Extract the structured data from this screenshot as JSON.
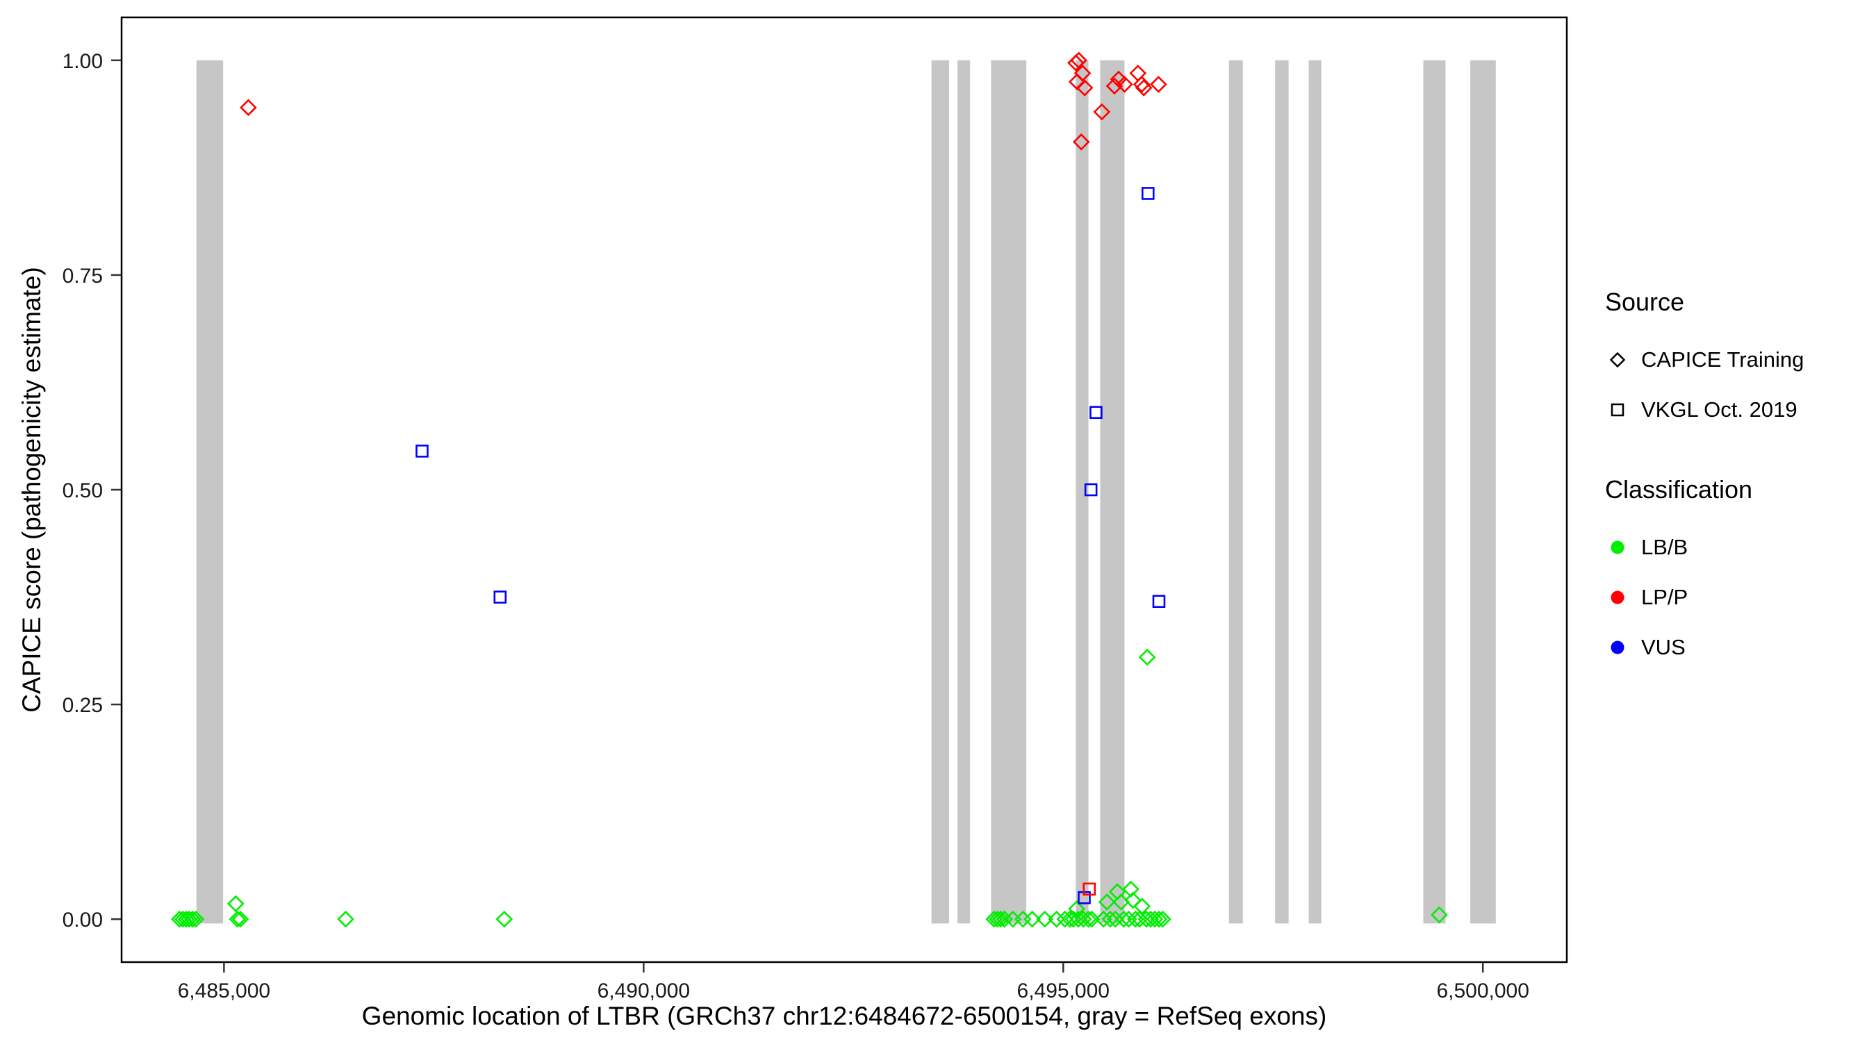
{
  "legend": {
    "source": {
      "title": "Source",
      "items": [
        {
          "label": "CAPICE Training",
          "shape": "diamond"
        },
        {
          "label": "VKGL Oct. 2019",
          "shape": "square"
        }
      ]
    },
    "classification": {
      "title": "Classification",
      "items": [
        {
          "label": "LB/B",
          "color": "#00EE00"
        },
        {
          "label": "LP/P",
          "color": "#FF0000"
        },
        {
          "label": "VUS",
          "color": "#0000FF"
        }
      ]
    }
  },
  "chart_data": {
    "type": "scatter",
    "title": "",
    "xlabel": "Genomic location of LTBR (GRCh37 chr12:6484672-6500154, gray = RefSeq exons)",
    "ylabel": "CAPICE score (pathogenicity estimate)",
    "x_domain": [
      6483780,
      6501000
    ],
    "y_domain": [
      -0.05,
      1.05
    ],
    "grid": false,
    "legend_position": "right",
    "x_ticks": [
      {
        "value": 6485000,
        "label": "6,485,000"
      },
      {
        "value": 6490000,
        "label": "6,490,000"
      },
      {
        "value": 6495000,
        "label": "6,495,000"
      },
      {
        "value": 6500000,
        "label": "6,500,000"
      }
    ],
    "y_ticks": [
      {
        "value": 0.0,
        "label": "0.00"
      },
      {
        "value": 0.25,
        "label": "0.25"
      },
      {
        "value": 0.5,
        "label": "0.50"
      },
      {
        "value": 0.75,
        "label": "0.75"
      },
      {
        "value": 1.0,
        "label": "1.00"
      }
    ],
    "exon_color": "#C6C6C6",
    "exons": [
      [
        6484672,
        6484990
      ],
      [
        6493430,
        6493640
      ],
      [
        6493740,
        6493890
      ],
      [
        6494140,
        6494560
      ],
      [
        6495150,
        6495300
      ],
      [
        6495440,
        6495730
      ],
      [
        6496975,
        6497140
      ],
      [
        6497525,
        6497685
      ],
      [
        6497925,
        6498075
      ],
      [
        6499290,
        6499555
      ],
      [
        6499850,
        6500154
      ]
    ],
    "colors": {
      "LB/B": "#00EE00",
      "LP/P": "#FF0000",
      "VUS": "#0000FF"
    },
    "shapes": {
      "CAPICE Training": "diamond",
      "VKGL Oct. 2019": "square"
    },
    "series": [
      {
        "name": "CAPICE Training / LP/P",
        "source": "CAPICE Training",
        "class": "LP/P",
        "shape": "diamond",
        "points": [
          [
            6485290,
            0.945
          ],
          [
            6495150,
            0.997
          ],
          [
            6495185,
            1.0
          ],
          [
            6495165,
            0.975
          ],
          [
            6495230,
            0.985
          ],
          [
            6495255,
            0.968
          ],
          [
            6495215,
            0.905
          ],
          [
            6495460,
            0.94
          ],
          [
            6495610,
            0.97
          ],
          [
            6495660,
            0.978
          ],
          [
            6495730,
            0.972
          ],
          [
            6495890,
            0.985
          ],
          [
            6495935,
            0.972
          ],
          [
            6495960,
            0.968
          ],
          [
            6496135,
            0.972
          ]
        ]
      },
      {
        "name": "CAPICE Training / LB/B",
        "source": "CAPICE Training",
        "class": "LB/B",
        "shape": "diamond",
        "points": [
          [
            6484470,
            0.0
          ],
          [
            6484510,
            0.0
          ],
          [
            6484550,
            0.0
          ],
          [
            6484585,
            0.0
          ],
          [
            6484625,
            0.0
          ],
          [
            6484665,
            0.0
          ],
          [
            6485140,
            0.018
          ],
          [
            6485160,
            0.0
          ],
          [
            6485195,
            0.0
          ],
          [
            6486450,
            0.0
          ],
          [
            6488340,
            0.0
          ],
          [
            6494175,
            0.0
          ],
          [
            6494215,
            0.0
          ],
          [
            6494255,
            0.0
          ],
          [
            6494300,
            0.0
          ],
          [
            6494400,
            0.0
          ],
          [
            6494520,
            0.0
          ],
          [
            6494630,
            0.0
          ],
          [
            6494780,
            0.0
          ],
          [
            6494920,
            0.0
          ],
          [
            6495020,
            0.0
          ],
          [
            6495080,
            0.0
          ],
          [
            6495120,
            0.0
          ],
          [
            6495160,
            0.012
          ],
          [
            6495180,
            0.0
          ],
          [
            6495240,
            0.0
          ],
          [
            6495300,
            0.0
          ],
          [
            6495340,
            0.0
          ],
          [
            6495480,
            0.0
          ],
          [
            6495520,
            0.02
          ],
          [
            6495560,
            0.0
          ],
          [
            6495620,
            0.0
          ],
          [
            6495645,
            0.032
          ],
          [
            6495690,
            0.02
          ],
          [
            6495720,
            0.0
          ],
          [
            6495780,
            0.0
          ],
          [
            6495805,
            0.035
          ],
          [
            6495830,
            0.022
          ],
          [
            6495860,
            0.0
          ],
          [
            6495910,
            0.0
          ],
          [
            6495940,
            0.015
          ],
          [
            6495990,
            0.0
          ],
          [
            6496040,
            0.0
          ],
          [
            6496090,
            0.0
          ],
          [
            6496140,
            0.0
          ],
          [
            6496185,
            0.0
          ],
          [
            6496000,
            0.305
          ],
          [
            6499480,
            0.005
          ]
        ]
      },
      {
        "name": "VKGL Oct. 2019 / VUS",
        "source": "VKGL Oct. 2019",
        "class": "VUS",
        "shape": "square",
        "points": [
          [
            6487360,
            0.545
          ],
          [
            6488290,
            0.375
          ],
          [
            6495390,
            0.59
          ],
          [
            6495330,
            0.5
          ],
          [
            6496010,
            0.845
          ],
          [
            6496140,
            0.37
          ],
          [
            6495250,
            0.025
          ]
        ]
      },
      {
        "name": "VKGL Oct. 2019 / LP/P",
        "source": "VKGL Oct. 2019",
        "class": "LP/P",
        "shape": "square",
        "points": [
          [
            6495310,
            0.035
          ]
        ]
      }
    ]
  }
}
